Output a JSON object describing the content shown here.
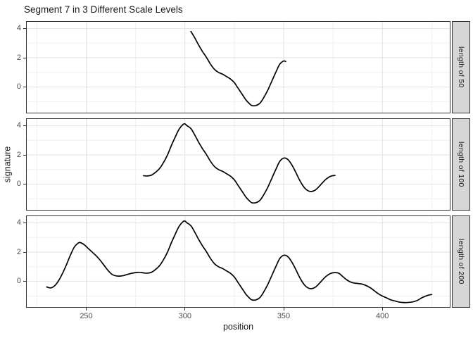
{
  "chart_data": {
    "type": "line",
    "title": "Segment 7 in 3 Different Scale Levels",
    "xlabel": "position",
    "ylabel": "signature",
    "x_ticks": [
      250,
      300,
      350,
      400
    ],
    "x_minor_ticks": [
      225,
      275,
      325,
      375,
      425
    ],
    "y_ticks": [
      0,
      2,
      4
    ],
    "y_minor_ticks": [
      -1,
      1,
      3
    ],
    "xlim": [
      219.5,
      434.5
    ],
    "ylim": [
      -1.8,
      4.5
    ],
    "grid": true,
    "legend_position": "none",
    "facets": [
      {
        "label": "length of 50",
        "x_range": [
          303,
          351
        ]
      },
      {
        "label": "length of 100",
        "x_range": [
          279,
          376
        ]
      },
      {
        "label": "length of 200",
        "x_range": [
          230,
          425
        ]
      }
    ],
    "series": [
      {
        "name": "signature",
        "points": [
          [
            230,
            -0.38
          ],
          [
            232,
            -0.45
          ],
          [
            234,
            -0.3
          ],
          [
            236,
            0.05
          ],
          [
            238,
            0.55
          ],
          [
            240,
            1.15
          ],
          [
            242,
            1.8
          ],
          [
            244,
            2.35
          ],
          [
            246,
            2.62
          ],
          [
            247,
            2.65
          ],
          [
            249,
            2.5
          ],
          [
            251,
            2.25
          ],
          [
            253,
            2.0
          ],
          [
            255,
            1.75
          ],
          [
            257,
            1.45
          ],
          [
            259,
            1.1
          ],
          [
            261,
            0.75
          ],
          [
            263,
            0.48
          ],
          [
            265,
            0.38
          ],
          [
            267,
            0.36
          ],
          [
            269,
            0.4
          ],
          [
            271,
            0.48
          ],
          [
            273,
            0.55
          ],
          [
            275,
            0.6
          ],
          [
            277,
            0.62
          ],
          [
            279,
            0.58
          ],
          [
            281,
            0.56
          ],
          [
            283,
            0.62
          ],
          [
            285,
            0.8
          ],
          [
            287,
            1.05
          ],
          [
            289,
            1.45
          ],
          [
            291,
            1.95
          ],
          [
            293,
            2.6
          ],
          [
            295,
            3.2
          ],
          [
            297,
            3.75
          ],
          [
            299,
            4.08
          ],
          [
            300,
            4.12
          ],
          [
            301,
            4.0
          ],
          [
            303,
            3.8
          ],
          [
            305,
            3.35
          ],
          [
            307,
            2.85
          ],
          [
            309,
            2.4
          ],
          [
            311,
            2.0
          ],
          [
            313,
            1.55
          ],
          [
            315,
            1.2
          ],
          [
            317,
            1.0
          ],
          [
            319,
            0.88
          ],
          [
            321,
            0.72
          ],
          [
            323,
            0.55
          ],
          [
            325,
            0.3
          ],
          [
            327,
            -0.1
          ],
          [
            329,
            -0.5
          ],
          [
            331,
            -0.9
          ],
          [
            333,
            -1.18
          ],
          [
            334,
            -1.27
          ],
          [
            336,
            -1.26
          ],
          [
            338,
            -1.1
          ],
          [
            340,
            -0.7
          ],
          [
            342,
            -0.2
          ],
          [
            344,
            0.4
          ],
          [
            346,
            1.0
          ],
          [
            348,
            1.55
          ],
          [
            350,
            1.78
          ],
          [
            352,
            1.7
          ],
          [
            354,
            1.35
          ],
          [
            356,
            0.85
          ],
          [
            358,
            0.3
          ],
          [
            360,
            -0.15
          ],
          [
            362,
            -0.42
          ],
          [
            364,
            -0.5
          ],
          [
            366,
            -0.4
          ],
          [
            368,
            -0.15
          ],
          [
            370,
            0.15
          ],
          [
            372,
            0.4
          ],
          [
            374,
            0.55
          ],
          [
            376,
            0.6
          ],
          [
            378,
            0.55
          ],
          [
            380,
            0.32
          ],
          [
            382,
            0.1
          ],
          [
            384,
            -0.05
          ],
          [
            386,
            -0.12
          ],
          [
            388,
            -0.15
          ],
          [
            390,
            -0.2
          ],
          [
            392,
            -0.3
          ],
          [
            394,
            -0.45
          ],
          [
            396,
            -0.65
          ],
          [
            398,
            -0.85
          ],
          [
            400,
            -1.0
          ],
          [
            402,
            -1.12
          ],
          [
            404,
            -1.25
          ],
          [
            406,
            -1.33
          ],
          [
            408,
            -1.4
          ],
          [
            410,
            -1.44
          ],
          [
            412,
            -1.45
          ],
          [
            414,
            -1.43
          ],
          [
            416,
            -1.38
          ],
          [
            418,
            -1.28
          ],
          [
            420,
            -1.12
          ],
          [
            422,
            -1.0
          ],
          [
            424,
            -0.92
          ],
          [
            425,
            -0.9
          ]
        ]
      }
    ],
    "colors": {
      "line": "#000000",
      "panel_border": "#333333",
      "grid_major": "#e2e2e2",
      "grid_minor": "#f0f0f0",
      "strip_fill": "#d6d6d6",
      "tick_label": "#4d4d4d",
      "text": "#1a1a1a",
      "background": "#ffffff"
    }
  }
}
